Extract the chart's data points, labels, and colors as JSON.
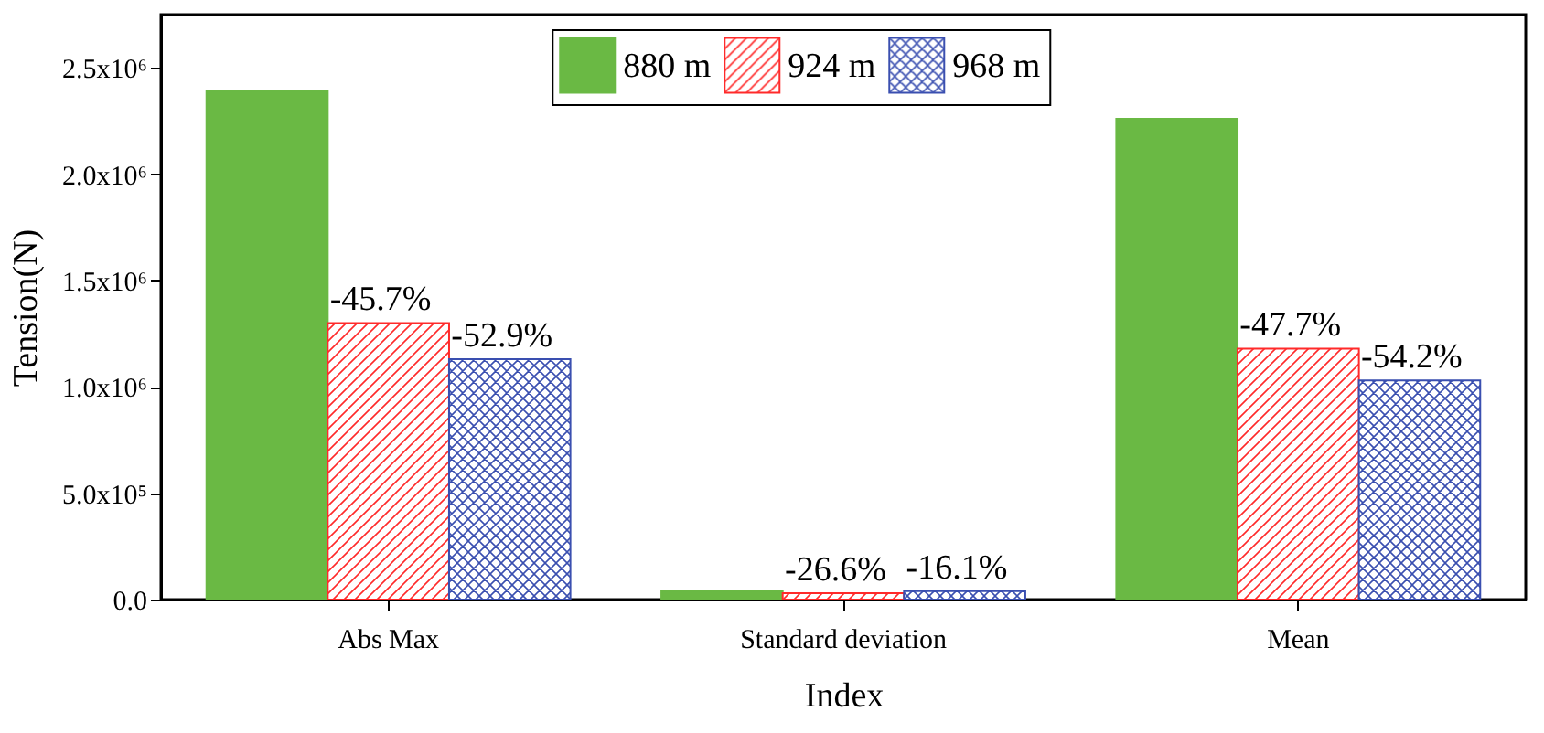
{
  "chart_data": {
    "type": "bar",
    "xlabel": "Index",
    "ylabel": "Tension(N)",
    "categories": [
      "Abs Max",
      "Standard deviation",
      "Mean"
    ],
    "series": [
      {
        "name": "880 m",
        "color": "#6ab944",
        "values": [
          2390000,
          40000,
          2260000
        ]
      },
      {
        "name": "924 m",
        "color": "#ff2a2a",
        "values": [
          1300000,
          30000,
          1180000
        ]
      },
      {
        "name": "968 m",
        "color": "#3a4fb0",
        "values": [
          1130000,
          40000,
          1030000
        ]
      }
    ],
    "annotations": [
      {
        "text": "-45.7%",
        "x": "Abs Max",
        "y": 1300000
      },
      "-52.9%",
      {
        "text": "-26.6%",
        "x": "Standard deviation",
        "y": 30000
      },
      {
        "text": "-16.1%",
        "x": "Standard deviation",
        "y": 40000
      },
      {
        "text": "-47.7%",
        "x": "Mean",
        "y": 1180000
      },
      "-54.2%"
    ],
    "ylim": [
      0,
      2750000
    ],
    "yticks": [
      {
        "value": 0,
        "label": "0.0"
      },
      {
        "value": 500000,
        "label": "5.0x10⁵"
      },
      {
        "value": 1000000,
        "label": "1.0x10⁶"
      },
      {
        "value": 1500000,
        "label": "1.5x10⁶"
      },
      {
        "value": 2000000,
        "label": "2.0x10⁶"
      },
      {
        "value": 2500000,
        "label": "2.5x10⁶"
      }
    ],
    "legend": "top",
    "grid": false
  }
}
